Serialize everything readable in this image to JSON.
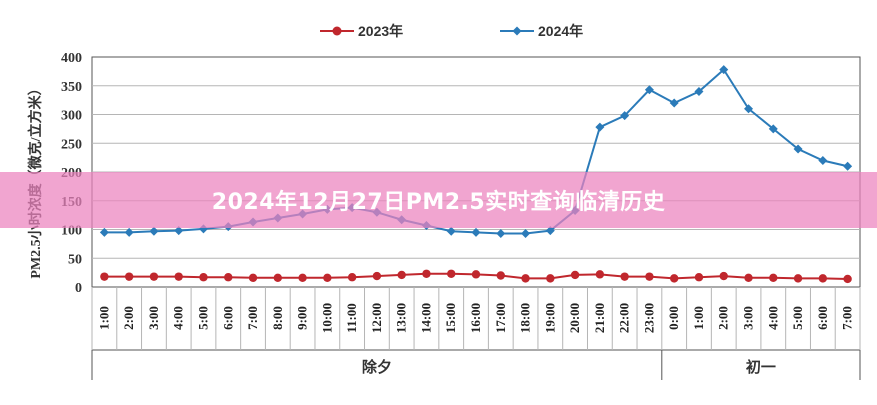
{
  "overlay_title": "2024年12月27日PM2.5实时查询临清历史",
  "colors": {
    "series_2023": "#c0272d",
    "series_2024": "#2b7bb9",
    "grid": "#b5b5b5",
    "axis": "#555555"
  },
  "chart_data": {
    "type": "line",
    "title": "",
    "ylabel": "PM2.5小时浓度（微克/立方米）",
    "xlabel": "",
    "ylim": [
      0,
      400
    ],
    "yticks": [
      0,
      50,
      100,
      150,
      200,
      250,
      300,
      350,
      400
    ],
    "grid": true,
    "legend_position": "top-center",
    "categories": [
      "1:00",
      "2:00",
      "3:00",
      "4:00",
      "5:00",
      "6:00",
      "7:00",
      "8:00",
      "9:00",
      "10:00",
      "11:00",
      "12:00",
      "13:00",
      "14:00",
      "15:00",
      "16:00",
      "17:00",
      "18:00",
      "19:00",
      "20:00",
      "21:00",
      "22:00",
      "23:00",
      "0:00",
      "1:00",
      "2:00",
      "3:00",
      "4:00",
      "5:00",
      "6:00",
      "7:00"
    ],
    "groups": [
      {
        "label": "除夕",
        "start": 0,
        "end": 23
      },
      {
        "label": "初一",
        "start": 23,
        "end": 31
      }
    ],
    "series": [
      {
        "name": "2023年",
        "marker": "circle",
        "values": [
          18,
          18,
          18,
          18,
          17,
          17,
          16,
          16,
          16,
          16,
          17,
          19,
          21,
          23,
          23,
          22,
          20,
          15,
          15,
          21,
          22,
          18,
          18,
          15,
          17,
          19,
          16,
          16,
          15,
          15,
          14
        ]
      },
      {
        "name": "2024年",
        "marker": "diamond",
        "values": [
          95,
          95,
          97,
          98,
          101,
          105,
          113,
          120,
          127,
          135,
          138,
          130,
          117,
          107,
          97,
          95,
          93,
          93,
          98,
          133,
          278,
          298,
          343,
          320,
          340,
          378,
          310,
          275,
          240,
          220,
          210
        ]
      }
    ]
  }
}
